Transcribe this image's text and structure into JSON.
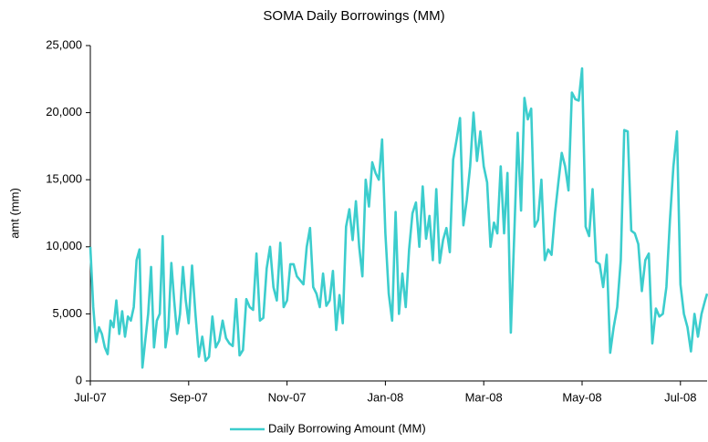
{
  "chart_data": {
    "type": "line",
    "title": "SOMA Daily Borrowings (MM)",
    "y_label": "amt (mm)",
    "ylim": [
      0,
      25000
    ],
    "yticks": [
      0,
      {
        "value": 5000,
        "label": "5,000"
      },
      {
        "value": 10000,
        "label": "10,000"
      },
      {
        "value": 15000,
        "label": "15,000"
      },
      {
        "value": 20000,
        "label": "20,000"
      },
      {
        "value": 25000,
        "label": "25,000"
      }
    ],
    "grid": false,
    "legend": "bottom",
    "categories": [
      "Jul-07",
      null,
      null,
      null,
      null,
      null,
      null,
      null,
      null,
      null,
      null,
      null,
      null,
      null,
      null,
      null,
      null,
      null,
      null,
      null,
      null,
      null,
      null,
      null,
      null,
      null,
      null,
      null,
      null,
      null,
      null,
      null,
      null,
      null,
      "Sep-07",
      null,
      null,
      null,
      null,
      null,
      null,
      null,
      null,
      null,
      null,
      null,
      null,
      null,
      null,
      null,
      null,
      null,
      null,
      null,
      null,
      null,
      null,
      null,
      null,
      null,
      null,
      null,
      null,
      "Nov-07",
      null,
      null,
      null,
      null,
      null,
      null,
      null,
      null,
      null,
      null,
      null,
      null,
      null,
      null,
      null,
      null,
      null,
      null,
      null,
      null,
      null,
      null,
      null,
      null,
      null,
      null,
      null,
      null,
      null,
      "Jan-08",
      null,
      null,
      null,
      null,
      null,
      null,
      null,
      null,
      null,
      null,
      null,
      null,
      null,
      null,
      null,
      null,
      null,
      null,
      null,
      null,
      null,
      null,
      null,
      null,
      null,
      null,
      null,
      null,
      "Mar-08",
      null,
      null,
      null,
      null,
      null,
      null,
      null,
      null,
      null,
      null,
      null,
      null,
      null,
      null,
      null,
      null,
      null,
      null,
      null,
      null,
      null,
      null,
      null,
      null,
      null,
      null,
      null,
      null,
      "May-08",
      null,
      null,
      null,
      null,
      null,
      null,
      null,
      null,
      null,
      null,
      null,
      null,
      null,
      null,
      null,
      null,
      null,
      null,
      null,
      null,
      null,
      null,
      null,
      null,
      null,
      null,
      null,
      "Jul-08",
      null,
      null,
      null,
      null,
      null,
      null,
      null,
      null
    ],
    "series": [
      {
        "name": "Daily Borrowing Amount (MM)",
        "color": "#3ccdcd",
        "values": [
          10000,
          5500,
          2900,
          4000,
          3500,
          2500,
          2000,
          4500,
          4000,
          6000,
          3500,
          5200,
          3300,
          4800,
          4500,
          5500,
          9000,
          9800,
          1000,
          3000,
          5000,
          8500,
          2500,
          4500,
          5000,
          10800,
          2500,
          4000,
          8800,
          6000,
          3500,
          5000,
          8500,
          6000,
          4300,
          8600,
          5000,
          1800,
          3300,
          1500,
          1800,
          4800,
          2500,
          3000,
          4500,
          3200,
          2800,
          2600,
          6100,
          1900,
          2300,
          6100,
          5500,
          5300,
          9500,
          4500,
          4700,
          8400,
          10000,
          7000,
          6000,
          10300,
          5500,
          6000,
          8700,
          8700,
          7800,
          7500,
          7200,
          10000,
          11400,
          7000,
          6500,
          5500,
          8000,
          5600,
          6000,
          8200,
          3800,
          6400,
          4300,
          11500,
          12800,
          10500,
          13400,
          10000,
          7800,
          15000,
          13000,
          16300,
          15500,
          15000,
          18000,
          11000,
          6500,
          4500,
          12600,
          5000,
          8000,
          5500,
          9800,
          12500,
          13300,
          10000,
          14500,
          10600,
          12300,
          9000,
          14300,
          8800,
          10500,
          11400,
          9600,
          16500,
          18000,
          19600,
          11600,
          13500,
          16000,
          20000,
          16400,
          18600,
          16000,
          14800,
          10000,
          11800,
          11000,
          16000,
          11000,
          15500,
          3600,
          11000,
          18500,
          12700,
          21100,
          19500,
          20300,
          11500,
          12000,
          15000,
          9000,
          9800,
          9400,
          12500,
          14800,
          17000,
          16000,
          14200,
          21500,
          21000,
          20900,
          23300,
          11500,
          10800,
          14300,
          8900,
          8700,
          7000,
          9400,
          2100,
          4000,
          5500,
          9000,
          18700,
          18600,
          11200,
          11000,
          10200,
          6700,
          9000,
          9500,
          2800,
          5400,
          4800,
          5000,
          7000,
          12000,
          16000,
          18600,
          7200,
          5000,
          4000,
          2200,
          5000,
          3300,
          5000,
          6000,
          6500
        ]
      }
    ]
  }
}
